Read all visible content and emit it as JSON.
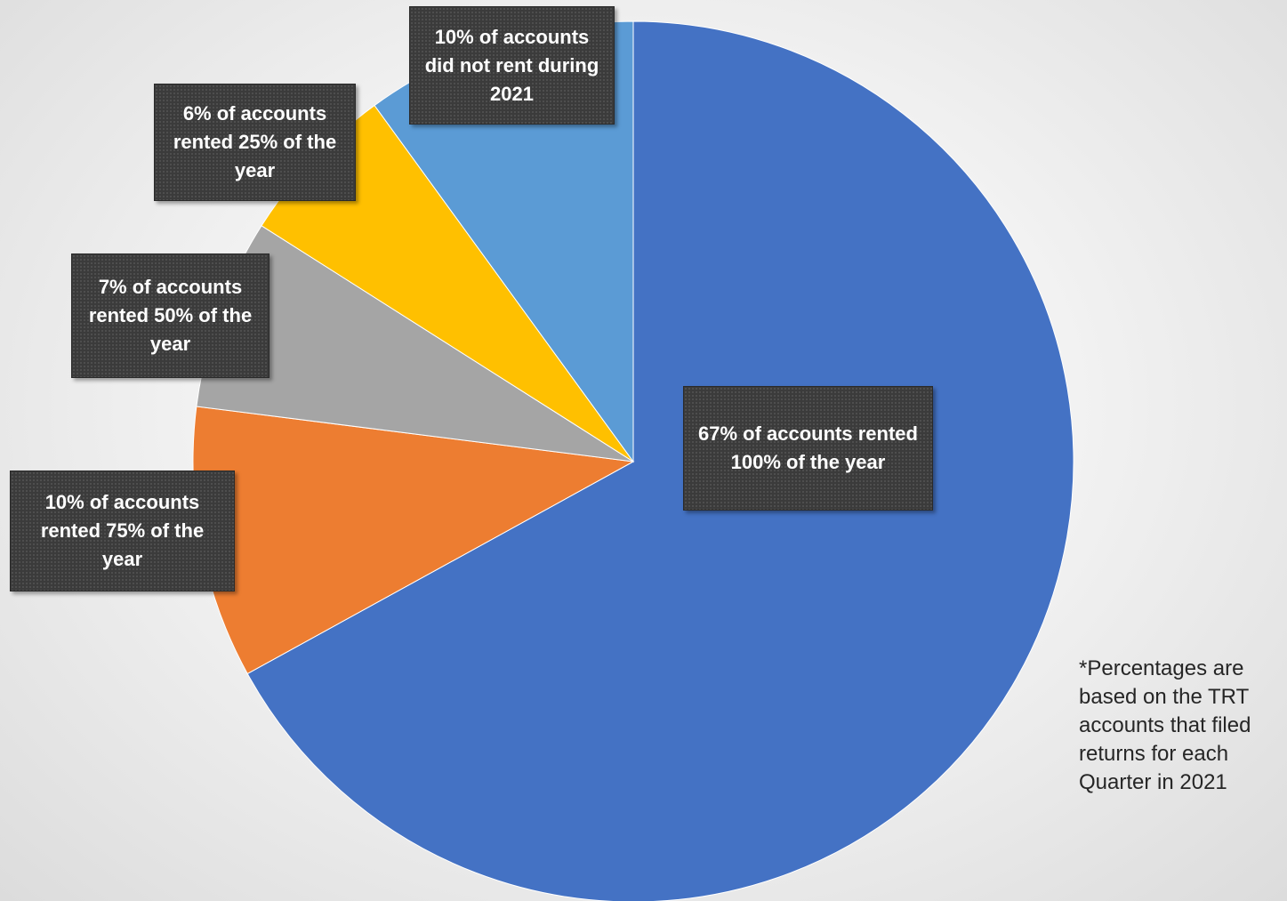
{
  "chart_data": {
    "type": "pie",
    "slices": [
      {
        "label": "67% of accounts rented 100% of the year",
        "value": 67,
        "color": "#4472c4"
      },
      {
        "label": "10% of accounts rented 75% of the year",
        "value": 10,
        "color": "#ed7d31"
      },
      {
        "label": "7% of accounts rented 50% of the year",
        "value": 7,
        "color": "#a5a5a5"
      },
      {
        "label": "6% of accounts rented 25% of the year",
        "value": 6,
        "color": "#ffc000"
      },
      {
        "label": "10% of accounts did not rent during 2021",
        "value": 10,
        "color": "#5b9bd5"
      }
    ],
    "start": "12 o'clock",
    "direction": "clockwise",
    "legend": "none",
    "footnote": "*Percentages are based on the TRT accounts that filed returns for each Quarter in 2021"
  }
}
